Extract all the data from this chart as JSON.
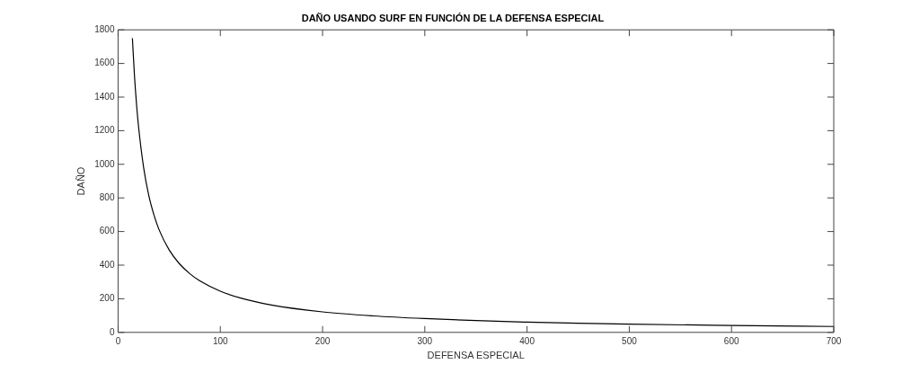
{
  "chart_data": {
    "type": "line",
    "title": "DAÑO USANDO SURF EN FUNCIÓN DE LA DEFENSA ESPECIAL",
    "xlabel": "DEFENSA ESPECIAL",
    "ylabel": "DAÑO",
    "x": [
      14,
      16,
      18,
      20,
      25,
      30,
      35,
      40,
      50,
      60,
      70,
      80,
      100,
      120,
      150,
      200,
      250,
      300,
      350,
      400,
      450,
      500,
      600,
      700
    ],
    "series": [
      {
        "color": "#000000",
        "values": [
          1750,
          1530,
          1360,
          1225,
          980,
          815,
          700,
          612,
          490,
          408,
          350,
          306,
          245,
          204,
          163,
          122,
          98,
          82,
          70,
          61,
          54,
          49,
          41,
          35
        ]
      }
    ],
    "xlim": [
      0,
      700
    ],
    "xticks": [
      0,
      100,
      200,
      300,
      400,
      500,
      600,
      700
    ],
    "ylim": [
      0,
      1800
    ],
    "yticks": [
      0,
      200,
      400,
      600,
      800,
      1000,
      1200,
      1400,
      1600,
      1800
    ],
    "grid": false,
    "legend": false,
    "marker": "none",
    "line_style": "solid"
  }
}
